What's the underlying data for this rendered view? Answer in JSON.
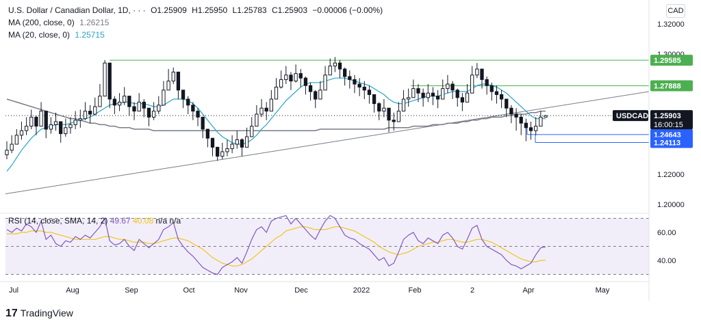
{
  "header": {
    "symbol_title": "U.S. Dollar / Canadian Dollar, 1D, · · ·",
    "ohlc": {
      "open": "O1.25909",
      "high": "H1.25950",
      "low": "L1.25783",
      "close": "C1.25903",
      "change": "−0.00006 (−0.00%)"
    },
    "ma200_label": "MA (200, close, 0)",
    "ma200_value": "1.26215",
    "ma20_label": "MA (20, close, 0)",
    "ma20_value": "1.25715",
    "currency_badge": "CAD"
  },
  "rsi_legend": {
    "label": "RSI (14, close, SMA, 14, 2)",
    "rsi": "49.67",
    "rsi_ma": "40.08",
    "extra": "n/a n/a"
  },
  "brand": {
    "logo": "17",
    "name": "TradingView"
  },
  "colors": {
    "up": "#131722",
    "down": "#131722",
    "ma200": "#787b86",
    "ma20": "#26a3c7",
    "rsi": "#7e57c2",
    "rsi_ma": "#f0c419",
    "level_green": "#4caf50",
    "level_blue": "#2962ff",
    "price_tag": "#131722"
  },
  "chart_data": [
    {
      "type": "candlestick",
      "title": "U.S. Dollar / Canadian Dollar, 1D",
      "ylim": [
        1.19,
        1.33
      ],
      "y_ticks": [
        "1.32000",
        "1.30000",
        "1.22000",
        "1.20000"
      ],
      "x_ticks": [
        "Jul",
        "Aug",
        "Sep",
        "Oct",
        "Nov",
        "Dec",
        "2022",
        "Feb",
        "2",
        "Apr",
        "May"
      ],
      "current_price": {
        "symbol": "USDCAD",
        "value": "1.25903",
        "countdown": "16:00:15",
        "numeric": 1.25903
      },
      "levels": [
        {
          "label": "1.29585",
          "value": 1.29585,
          "color": "#4caf50"
        },
        {
          "label": "1.27888",
          "value": 1.27888,
          "color": "#4caf50"
        },
        {
          "label": "1.24643",
          "value": 1.24643,
          "color": "#2962ff"
        },
        {
          "label": "1.24113",
          "value": 1.24113,
          "color": "#2962ff"
        }
      ],
      "trendline": {
        "start": {
          "date": "2021-06-01",
          "value": 1.207
        },
        "end": {
          "date": "2022-05-31",
          "value": 1.275
        }
      },
      "close_series": {
        "name": "USDCAD close",
        "values": [
          1.236,
          1.24,
          1.246,
          1.249,
          1.252,
          1.258,
          1.252,
          1.262,
          1.25,
          1.253,
          1.255,
          1.247,
          1.251,
          1.253,
          1.256,
          1.257,
          1.262,
          1.26,
          1.265,
          1.272,
          1.294,
          1.27,
          1.266,
          1.268,
          1.272,
          1.265,
          1.262,
          1.268,
          1.264,
          1.258,
          1.262,
          1.266,
          1.276,
          1.282,
          1.288,
          1.276,
          1.27,
          1.266,
          1.262,
          1.258,
          1.25,
          1.244,
          1.238,
          1.232,
          1.235,
          1.237,
          1.24,
          1.243,
          1.238,
          1.245,
          1.252,
          1.26,
          1.264,
          1.262,
          1.27,
          1.278,
          1.283,
          1.286,
          1.282,
          1.287,
          1.284,
          1.279,
          1.275,
          1.27,
          1.276,
          1.286,
          1.292,
          1.294,
          1.29,
          1.285,
          1.283,
          1.28,
          1.278,
          1.276,
          1.273,
          1.267,
          1.262,
          1.264,
          1.256,
          1.255,
          1.262,
          1.27,
          1.271,
          1.277,
          1.274,
          1.271,
          1.274,
          1.272,
          1.27,
          1.277,
          1.28,
          1.276,
          1.271,
          1.268,
          1.274,
          1.286,
          1.29,
          1.283,
          1.279,
          1.275,
          1.273,
          1.27,
          1.264,
          1.26,
          1.258,
          1.254,
          1.251,
          1.249,
          1.252,
          1.258,
          1.259
        ],
        "highs": [
          1.242,
          1.246,
          1.25,
          1.255,
          1.258,
          1.263,
          1.259,
          1.268,
          1.256,
          1.258,
          1.261,
          1.254,
          1.257,
          1.258,
          1.262,
          1.263,
          1.268,
          1.266,
          1.271,
          1.28,
          1.296,
          1.285,
          1.272,
          1.274,
          1.278,
          1.272,
          1.268,
          1.274,
          1.27,
          1.264,
          1.268,
          1.272,
          1.282,
          1.29,
          1.291,
          1.285,
          1.276,
          1.272,
          1.268,
          1.264,
          1.256,
          1.25,
          1.244,
          1.238,
          1.241,
          1.243,
          1.246,
          1.249,
          1.244,
          1.251,
          1.258,
          1.266,
          1.27,
          1.268,
          1.276,
          1.284,
          1.289,
          1.292,
          1.288,
          1.293,
          1.29,
          1.285,
          1.281,
          1.276,
          1.282,
          1.292,
          1.297,
          1.298,
          1.296,
          1.291,
          1.289,
          1.286,
          1.284,
          1.282,
          1.279,
          1.273,
          1.268,
          1.27,
          1.262,
          1.261,
          1.268,
          1.276,
          1.277,
          1.283,
          1.28,
          1.277,
          1.28,
          1.278,
          1.276,
          1.283,
          1.286,
          1.282,
          1.277,
          1.274,
          1.28,
          1.292,
          1.294,
          1.29,
          1.285,
          1.281,
          1.279,
          1.276,
          1.27,
          1.266,
          1.264,
          1.26,
          1.257,
          1.255,
          1.258,
          1.262,
          1.2595
        ],
        "lows": [
          1.23,
          1.234,
          1.24,
          1.243,
          1.246,
          1.25,
          1.246,
          1.256,
          1.244,
          1.247,
          1.249,
          1.241,
          1.245,
          1.247,
          1.25,
          1.251,
          1.256,
          1.254,
          1.259,
          1.266,
          1.272,
          1.264,
          1.26,
          1.262,
          1.266,
          1.259,
          1.256,
          1.262,
          1.258,
          1.252,
          1.256,
          1.26,
          1.27,
          1.276,
          1.28,
          1.27,
          1.264,
          1.26,
          1.256,
          1.252,
          1.244,
          1.238,
          1.232,
          1.229,
          1.23,
          1.232,
          1.234,
          1.237,
          1.232,
          1.239,
          1.246,
          1.254,
          1.258,
          1.256,
          1.264,
          1.272,
          1.277,
          1.28,
          1.276,
          1.281,
          1.278,
          1.273,
          1.269,
          1.264,
          1.27,
          1.28,
          1.286,
          1.288,
          1.284,
          1.279,
          1.277,
          1.274,
          1.272,
          1.27,
          1.267,
          1.261,
          1.256,
          1.258,
          1.248,
          1.249,
          1.256,
          1.264,
          1.265,
          1.271,
          1.268,
          1.265,
          1.268,
          1.266,
          1.264,
          1.271,
          1.274,
          1.27,
          1.265,
          1.262,
          1.268,
          1.28,
          1.284,
          1.277,
          1.273,
          1.269,
          1.267,
          1.264,
          1.258,
          1.254,
          1.249,
          1.246,
          1.242,
          1.243,
          1.246,
          1.252,
          1.2578
        ]
      },
      "ma20_series": {
        "name": "MA (20, close, 0)",
        "values": [
          1.222,
          1.226,
          1.231,
          1.236,
          1.24,
          1.244,
          1.247,
          1.25,
          1.251,
          1.252,
          1.253,
          1.253,
          1.253,
          1.254,
          1.255,
          1.256,
          1.257,
          1.258,
          1.26,
          1.262,
          1.264,
          1.266,
          1.267,
          1.267,
          1.268,
          1.268,
          1.267,
          1.267,
          1.267,
          1.266,
          1.265,
          1.265,
          1.266,
          1.268,
          1.27,
          1.27,
          1.27,
          1.269,
          1.267,
          1.264,
          1.26,
          1.256,
          1.252,
          1.248,
          1.245,
          1.243,
          1.241,
          1.24,
          1.24,
          1.241,
          1.243,
          1.246,
          1.25,
          1.253,
          1.257,
          1.261,
          1.265,
          1.269,
          1.272,
          1.275,
          1.278,
          1.28,
          1.281,
          1.281,
          1.281,
          1.282,
          1.283,
          1.284,
          1.284,
          1.284,
          1.283,
          1.282,
          1.281,
          1.28,
          1.279,
          1.277,
          1.275,
          1.273,
          1.27,
          1.268,
          1.267,
          1.267,
          1.268,
          1.269,
          1.27,
          1.271,
          1.272,
          1.272,
          1.272,
          1.273,
          1.274,
          1.275,
          1.275,
          1.275,
          1.275,
          1.277,
          1.279,
          1.28,
          1.28,
          1.279,
          1.278,
          1.276,
          1.274,
          1.271,
          1.268,
          1.265,
          1.262,
          1.259,
          1.257,
          1.257,
          1.257
        ]
      },
      "ma200_series": {
        "name": "MA (200, close, 0)",
        "values": [
          1.27,
          1.269,
          1.268,
          1.267,
          1.266,
          1.265,
          1.264,
          1.263,
          1.262,
          1.261,
          1.26,
          1.259,
          1.258,
          1.257,
          1.257,
          1.256,
          1.255,
          1.254,
          1.254,
          1.253,
          1.253,
          1.252,
          1.252,
          1.251,
          1.251,
          1.251,
          1.25,
          1.25,
          1.25,
          1.25,
          1.249,
          1.249,
          1.249,
          1.249,
          1.249,
          1.249,
          1.249,
          1.249,
          1.249,
          1.249,
          1.249,
          1.249,
          1.249,
          1.249,
          1.249,
          1.249,
          1.249,
          1.249,
          1.249,
          1.249,
          1.249,
          1.249,
          1.249,
          1.249,
          1.249,
          1.249,
          1.249,
          1.249,
          1.249,
          1.249,
          1.249,
          1.249,
          1.249,
          1.249,
          1.25,
          1.25,
          1.25,
          1.25,
          1.25,
          1.25,
          1.25,
          1.25,
          1.25,
          1.25,
          1.25,
          1.25,
          1.25,
          1.25,
          1.251,
          1.251,
          1.251,
          1.251,
          1.251,
          1.252,
          1.252,
          1.252,
          1.252,
          1.253,
          1.253,
          1.253,
          1.254,
          1.254,
          1.254,
          1.255,
          1.255,
          1.256,
          1.256,
          1.257,
          1.257,
          1.258,
          1.258,
          1.258,
          1.259,
          1.259,
          1.26,
          1.26,
          1.26,
          1.261,
          1.261,
          1.262,
          1.262
        ]
      }
    },
    {
      "type": "line",
      "title": "RSI (14, close, SMA, 14, 2)",
      "ylim": [
        25,
        77
      ],
      "y_ticks": [
        "60.00",
        "40.00"
      ],
      "bands": [
        30,
        50,
        70
      ],
      "series": [
        {
          "name": "RSI",
          "values": [
            62,
            60,
            63,
            61,
            66,
            64,
            60,
            68,
            55,
            58,
            52,
            50,
            54,
            53,
            57,
            55,
            58,
            56,
            60,
            64,
            70,
            54,
            51,
            52,
            55,
            50,
            47,
            55,
            52,
            49,
            52,
            55,
            62,
            64,
            67,
            55,
            50,
            46,
            43,
            39,
            35,
            33,
            31,
            30,
            35,
            37,
            39,
            42,
            38,
            46,
            55,
            62,
            64,
            60,
            68,
            70,
            71,
            72,
            66,
            70,
            66,
            62,
            58,
            55,
            62,
            68,
            72,
            70,
            64,
            58,
            56,
            55,
            52,
            50,
            48,
            44,
            40,
            42,
            36,
            38,
            46,
            55,
            58,
            60,
            54,
            52,
            56,
            54,
            52,
            58,
            60,
            56,
            50,
            48,
            55,
            63,
            65,
            55,
            50,
            48,
            46,
            44,
            40,
            37,
            36,
            34,
            36,
            38,
            44,
            49,
            49.67
          ]
        },
        {
          "name": "RSI-based MA",
          "values": [
            59,
            59,
            59,
            60,
            60,
            61,
            61,
            61,
            60,
            60,
            59,
            58,
            57,
            56,
            55,
            55,
            55,
            55,
            55,
            56,
            57,
            57,
            56,
            55,
            55,
            54,
            53,
            53,
            53,
            52,
            52,
            53,
            54,
            55,
            56,
            56,
            55,
            54,
            52,
            50,
            48,
            45,
            42,
            40,
            38,
            37,
            36,
            36,
            37,
            39,
            41,
            44,
            47,
            50,
            53,
            56,
            58,
            61,
            62,
            63,
            64,
            64,
            63,
            62,
            62,
            62,
            63,
            64,
            64,
            63,
            62,
            61,
            59,
            57,
            55,
            53,
            50,
            48,
            46,
            45,
            44,
            45,
            46,
            48,
            50,
            51,
            52,
            53,
            53,
            54,
            55,
            55,
            54,
            53,
            53,
            54,
            55,
            55,
            54,
            53,
            51,
            49,
            47,
            45,
            43,
            41,
            40,
            39,
            39,
            40,
            40.08
          ]
        }
      ]
    }
  ]
}
